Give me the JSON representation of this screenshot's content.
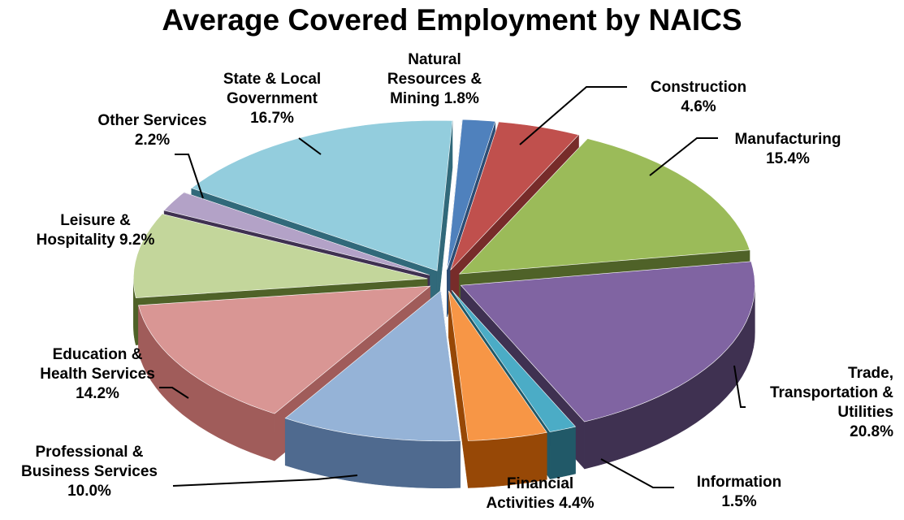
{
  "chart_data": {
    "type": "pie",
    "title": "Average Covered Employment by NAICS",
    "three_d": true,
    "exploded": true,
    "legend": "none",
    "slices": [
      {
        "name": "Natural Resources & Mining",
        "value": 1.8,
        "label_lines": [
          "Natural",
          "Resources &",
          "Mining  1.8%"
        ],
        "color": "#4f81bd",
        "side_color": "#2c4d75"
      },
      {
        "name": "Construction",
        "value": 4.6,
        "label_lines": [
          "Construction",
          "4.6%"
        ],
        "color": "#c0504d",
        "side_color": "#772c2a"
      },
      {
        "name": "Manufacturing",
        "value": 15.4,
        "label_lines": [
          "Manufacturing",
          "15.4%"
        ],
        "color": "#9bbb59",
        "side_color": "#4f6228"
      },
      {
        "name": "Trade, Transportation & Utilities",
        "value": 20.8,
        "label_lines": [
          "Trade,",
          "Transportation &",
          "Utilities",
          "20.8%"
        ],
        "color": "#8064a2",
        "side_color": "#3f3151"
      },
      {
        "name": "Information",
        "value": 1.5,
        "label_lines": [
          "Information",
          "1.5%"
        ],
        "color": "#4bacc6",
        "side_color": "#215968"
      },
      {
        "name": "Financial Activities",
        "value": 4.4,
        "label_lines": [
          "Financial",
          "Activities  4.4%"
        ],
        "color": "#f79646",
        "side_color": "#974806"
      },
      {
        "name": "Professional & Business Services",
        "value": 10.0,
        "label_lines": [
          "Professional &",
          "Business Services",
          "10.0%"
        ],
        "color": "#95b3d7",
        "side_color": "#4f6a8f"
      },
      {
        "name": "Education & Health Services",
        "value": 14.2,
        "label_lines": [
          "Education &",
          "Health Services",
          "14.2%"
        ],
        "color": "#d99694",
        "side_color": "#a05c5a"
      },
      {
        "name": "Leisure & Hospitality",
        "value": 9.2,
        "label_lines": [
          "Leisure &",
          "Hospitality  9.2%"
        ],
        "color": "#c3d69b",
        "side_color": "#4f6228"
      },
      {
        "name": "Other Services",
        "value": 2.2,
        "label_lines": [
          "Other Services",
          "2.2%"
        ],
        "color": "#b3a2c7",
        "side_color": "#3f3151"
      },
      {
        "name": "State & Local Government",
        "value": 16.7,
        "label_lines": [
          "State & Local",
          "Government",
          "16.7%"
        ],
        "color": "#93cddd",
        "side_color": "#31697a"
      }
    ]
  }
}
